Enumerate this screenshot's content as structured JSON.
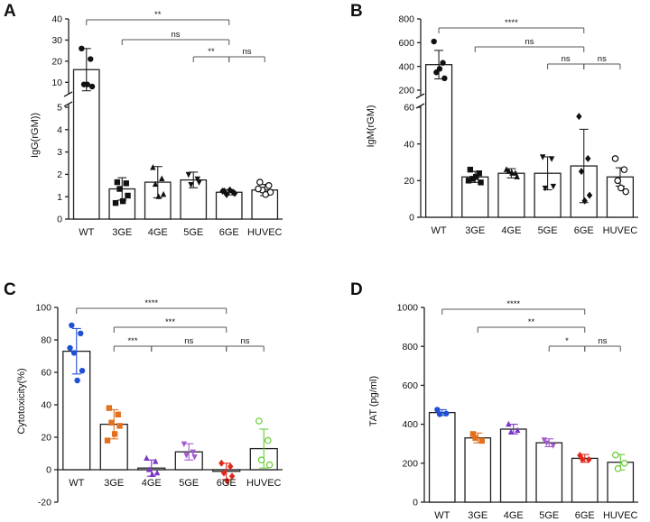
{
  "colors": {
    "axis": "#222222",
    "black_points": "#111111",
    "blue": "#1f4fd6",
    "orange": "#e2701f",
    "purple": "#7b36c4",
    "violet": "#a25bd0",
    "red": "#e0291d",
    "green": "#66cc33",
    "bracket": "#555555"
  },
  "chart_data": [
    {
      "panel": "A",
      "type": "bar",
      "ylabel": "IgG(rGM))",
      "categories": [
        "WT",
        "3GE",
        "4GE",
        "5GE",
        "6GE",
        "HUVEC"
      ],
      "broken_axis": true,
      "upper_ticks": [
        "10",
        "20",
        "30",
        "40"
      ],
      "lower_ticks": [
        "0",
        "1",
        "2",
        "3",
        "4",
        "5"
      ],
      "ylim_lower": [
        0,
        5
      ],
      "ylim_upper": [
        5,
        40
      ],
      "values": [
        16,
        1.35,
        1.65,
        1.75,
        1.2,
        1.3
      ],
      "sd": [
        10,
        0.5,
        0.7,
        0.35,
        0.12,
        0.25
      ],
      "points": [
        [
          26,
          21,
          9,
          8,
          9
        ],
        [
          1.65,
          1.6,
          1.35,
          1.05,
          0.8,
          0.72
        ],
        [
          2.3,
          1.8,
          1.55,
          1.1,
          1.0
        ],
        [
          2.0,
          1.8,
          1.55,
          1.65
        ],
        [
          1.25,
          1.2,
          1.1,
          1.15,
          1.3,
          1.25
        ],
        [
          1.65,
          1.5,
          1.3,
          1.2,
          1.1,
          1.35
        ]
      ],
      "comparisons": [
        {
          "from": "WT",
          "to": "6GE",
          "label": "**"
        },
        {
          "from": "3GE",
          "to": "6GE",
          "label": "ns"
        },
        {
          "from": "5GE",
          "to": "6GE",
          "label": "**"
        },
        {
          "from": "6GE",
          "to": "HUVEC",
          "label": "ns"
        }
      ]
    },
    {
      "panel": "B",
      "type": "bar",
      "ylabel": "IgM(rGM)",
      "categories": [
        "WT",
        "3GE",
        "4GE",
        "5GE",
        "6GE",
        "HUVEC"
      ],
      "broken_axis": true,
      "upper_ticks": [
        "200",
        "400",
        "600",
        "800"
      ],
      "lower_ticks": [
        "0",
        "20",
        "40",
        "60"
      ],
      "ylim_lower": [
        0,
        60
      ],
      "ylim_upper": [
        60,
        800
      ],
      "values": [
        415,
        22,
        24,
        24,
        28,
        22
      ],
      "sd": [
        120,
        3,
        2.5,
        9,
        20,
        5
      ],
      "points": [
        [
          610,
          430,
          350,
          300,
          380
        ],
        [
          26,
          24,
          21,
          19,
          22,
          20
        ],
        [
          26,
          24,
          25,
          22,
          24
        ],
        [
          33,
          32,
          16,
          17
        ],
        [
          55,
          32,
          25,
          12,
          9
        ],
        [
          32,
          26,
          20,
          14,
          16
        ]
      ],
      "comparisons": [
        {
          "from": "WT",
          "to": "6GE",
          "label": "****"
        },
        {
          "from": "3GE",
          "to": "6GE",
          "label": "ns"
        },
        {
          "from": "5GE",
          "to": "6GE",
          "label": "ns"
        },
        {
          "from": "6GE",
          "to": "HUVEC",
          "label": "ns"
        }
      ]
    },
    {
      "panel": "C",
      "type": "bar",
      "ylabel": "Cytotoxicity(%)",
      "categories": [
        "WT",
        "3GE",
        "4GE",
        "5GE",
        "6GE",
        "HUVEC"
      ],
      "ylim": [
        -20,
        100
      ],
      "ticks": [
        "-20",
        "0",
        "20",
        "40",
        "60",
        "80",
        "100"
      ],
      "values": [
        73,
        28,
        1,
        11,
        -1,
        13
      ],
      "sd": [
        14,
        9,
        5,
        5,
        5,
        12
      ],
      "point_colors": [
        "blue",
        "orange",
        "purple",
        "violet",
        "red",
        "green"
      ],
      "points": [
        [
          89,
          84,
          72,
          61,
          55,
          75
        ],
        [
          38,
          34,
          29,
          27,
          22,
          18
        ],
        [
          7,
          5,
          0,
          -2,
          -3
        ],
        [
          16,
          11,
          9,
          8
        ],
        [
          4,
          2,
          -2,
          -4,
          -7
        ],
        [
          30,
          18,
          6,
          3
        ]
      ],
      "comparisons": [
        {
          "from": "WT",
          "to": "6GE",
          "label": "****"
        },
        {
          "from": "3GE",
          "to": "6GE",
          "label": "***"
        },
        {
          "from": "3GE",
          "to": "4GE",
          "label": "***"
        },
        {
          "from": "4GE",
          "to": "6GE",
          "label": "ns"
        },
        {
          "from": "6GE",
          "to": "HUVEC",
          "label": "ns"
        }
      ]
    },
    {
      "panel": "D",
      "type": "bar",
      "ylabel": "TAT (pg/ml)",
      "categories": [
        "WT",
        "3GE",
        "4GE",
        "5GE",
        "6GE",
        "HUVEC"
      ],
      "ylim": [
        0,
        1000
      ],
      "ticks": [
        "0",
        "200",
        "400",
        "600",
        "800",
        "1000"
      ],
      "values": [
        460,
        330,
        375,
        305,
        225,
        205
      ],
      "sd": [
        15,
        25,
        25,
        20,
        20,
        40
      ],
      "point_colors": [
        "blue",
        "orange",
        "purple",
        "violet",
        "red",
        "green"
      ],
      "points": [
        [
          475,
          455,
          452
        ],
        [
          350,
          315,
          330
        ],
        [
          400,
          368,
          360
        ],
        [
          320,
          292,
          305
        ],
        [
          240,
          218,
          220
        ],
        [
          242,
          200,
          172
        ]
      ],
      "comparisons": [
        {
          "from": "WT",
          "to": "6GE",
          "label": "****"
        },
        {
          "from": "3GE",
          "to": "6GE",
          "label": "**"
        },
        {
          "from": "5GE",
          "to": "6GE",
          "label": "*"
        },
        {
          "from": "6GE",
          "to": "HUVEC",
          "label": "ns"
        }
      ]
    }
  ]
}
